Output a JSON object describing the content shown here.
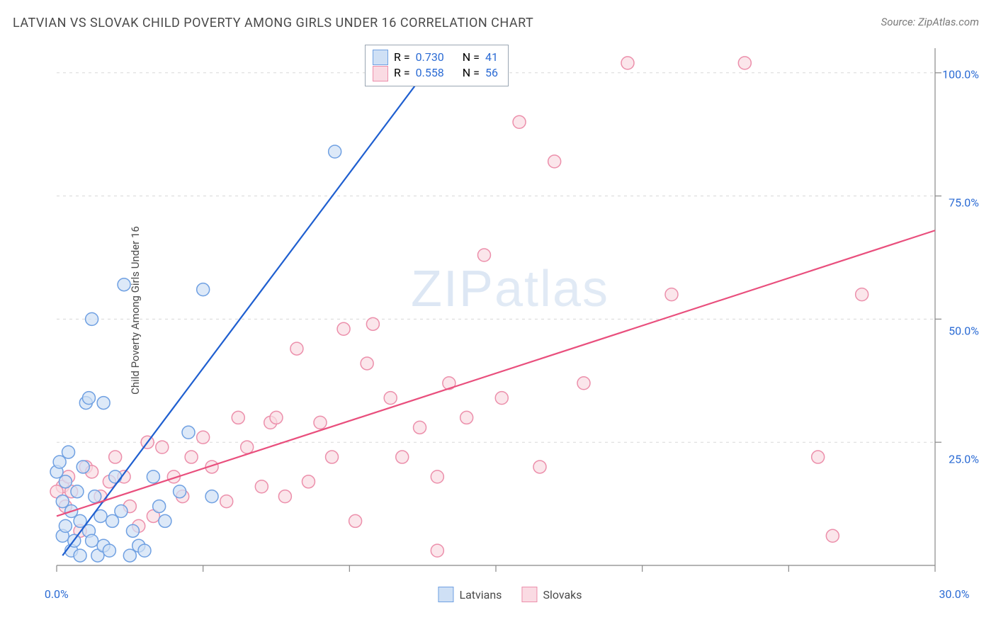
{
  "title": "LATVIAN VS SLOVAK CHILD POVERTY AMONG GIRLS UNDER 16 CORRELATION CHART",
  "source": "Source: ZipAtlas.com",
  "ylabel": "Child Poverty Among Girls Under 16",
  "watermark": "ZIPatlas",
  "chart": {
    "type": "scatter",
    "background_color": "#ffffff",
    "grid_color": "#d8d8d8",
    "axis_color": "#888888",
    "tick_color": "#888888",
    "label_color": "#2b6bd4",
    "text_color": "#4a4a4a",
    "marker_radius": 9,
    "marker_stroke_width": 1.5,
    "line_width": 2.2,
    "xlim": [
      0,
      30
    ],
    "ylim": [
      0,
      105
    ],
    "xticks": [
      0,
      5,
      10,
      15,
      20,
      25,
      30
    ],
    "xtick_labels": {
      "0": "0.0%",
      "30": "30.0%"
    },
    "yticks": [
      25,
      50,
      75,
      100
    ],
    "ytick_labels": {
      "25": "25.0%",
      "50": "50.0%",
      "75": "75.0%",
      "100": "100.0%"
    },
    "series": [
      {
        "name": "Latvians",
        "color_fill": "#cfe0f5",
        "color_stroke": "#6fa0e2",
        "line_color": "#1f5fd0",
        "R": "0.730",
        "N": "41",
        "regression": {
          "x1": 0.2,
          "y1": 2,
          "x2": 13.2,
          "y2": 105
        },
        "points": [
          [
            0.0,
            19
          ],
          [
            0.1,
            21
          ],
          [
            0.2,
            13
          ],
          [
            0.2,
            6
          ],
          [
            0.3,
            17
          ],
          [
            0.3,
            8
          ],
          [
            0.4,
            23
          ],
          [
            0.5,
            3
          ],
          [
            0.5,
            11
          ],
          [
            0.6,
            5
          ],
          [
            0.7,
            15
          ],
          [
            0.8,
            2
          ],
          [
            0.8,
            9
          ],
          [
            0.9,
            20
          ],
          [
            1.0,
            33
          ],
          [
            1.1,
            34
          ],
          [
            1.1,
            7
          ],
          [
            1.2,
            5
          ],
          [
            1.2,
            50
          ],
          [
            1.3,
            14
          ],
          [
            1.4,
            2
          ],
          [
            1.5,
            10
          ],
          [
            1.6,
            4
          ],
          [
            1.6,
            33
          ],
          [
            1.8,
            3
          ],
          [
            1.9,
            9
          ],
          [
            2.0,
            18
          ],
          [
            2.2,
            11
          ],
          [
            2.3,
            57
          ],
          [
            2.5,
            2
          ],
          [
            2.6,
            7
          ],
          [
            2.8,
            4
          ],
          [
            3.0,
            3
          ],
          [
            3.3,
            18
          ],
          [
            3.5,
            12
          ],
          [
            3.7,
            9
          ],
          [
            4.2,
            15
          ],
          [
            4.5,
            27
          ],
          [
            5.0,
            56
          ],
          [
            5.3,
            14
          ],
          [
            9.5,
            84
          ]
        ]
      },
      {
        "name": "Slovaks",
        "color_fill": "#fadbe3",
        "color_stroke": "#ec8fab",
        "line_color": "#e94f7d",
        "R": "0.558",
        "N": "56",
        "regression": {
          "x1": 0.0,
          "y1": 10,
          "x2": 30.0,
          "y2": 68
        },
        "points": [
          [
            0.2,
            16
          ],
          [
            0.3,
            12
          ],
          [
            0.4,
            18
          ],
          [
            0.5,
            15
          ],
          [
            0.8,
            7
          ],
          [
            1.0,
            20
          ],
          [
            1.2,
            19
          ],
          [
            1.5,
            14
          ],
          [
            1.8,
            17
          ],
          [
            2.0,
            22
          ],
          [
            2.3,
            18
          ],
          [
            2.5,
            12
          ],
          [
            2.8,
            8
          ],
          [
            3.1,
            25
          ],
          [
            3.3,
            10
          ],
          [
            3.6,
            24
          ],
          [
            4.0,
            18
          ],
          [
            4.3,
            14
          ],
          [
            4.6,
            22
          ],
          [
            5.0,
            26
          ],
          [
            5.3,
            20
          ],
          [
            5.8,
            13
          ],
          [
            6.2,
            30
          ],
          [
            6.5,
            24
          ],
          [
            7.0,
            16
          ],
          [
            7.3,
            29
          ],
          [
            7.8,
            14
          ],
          [
            8.2,
            44
          ],
          [
            8.6,
            17
          ],
          [
            9.0,
            29
          ],
          [
            9.4,
            22
          ],
          [
            9.8,
            48
          ],
          [
            10.2,
            9
          ],
          [
            10.6,
            41
          ],
          [
            10.8,
            49
          ],
          [
            11.4,
            34
          ],
          [
            11.8,
            22
          ],
          [
            12.4,
            28
          ],
          [
            13.0,
            3
          ],
          [
            13.4,
            37
          ],
          [
            14.0,
            30
          ],
          [
            14.6,
            63
          ],
          [
            15.2,
            34
          ],
          [
            15.8,
            90
          ],
          [
            16.5,
            20
          ],
          [
            17.0,
            82
          ],
          [
            18.0,
            37
          ],
          [
            19.5,
            102
          ],
          [
            21.0,
            55
          ],
          [
            23.5,
            102
          ],
          [
            26.0,
            22
          ],
          [
            26.5,
            6
          ],
          [
            27.5,
            55
          ],
          [
            0.0,
            15
          ],
          [
            13.0,
            18
          ],
          [
            7.5,
            30
          ]
        ]
      }
    ]
  },
  "legend_top": {
    "R_label": "R =",
    "N_label": "N ="
  },
  "legend_bottom": {
    "series1": "Latvians",
    "series2": "Slovaks"
  }
}
